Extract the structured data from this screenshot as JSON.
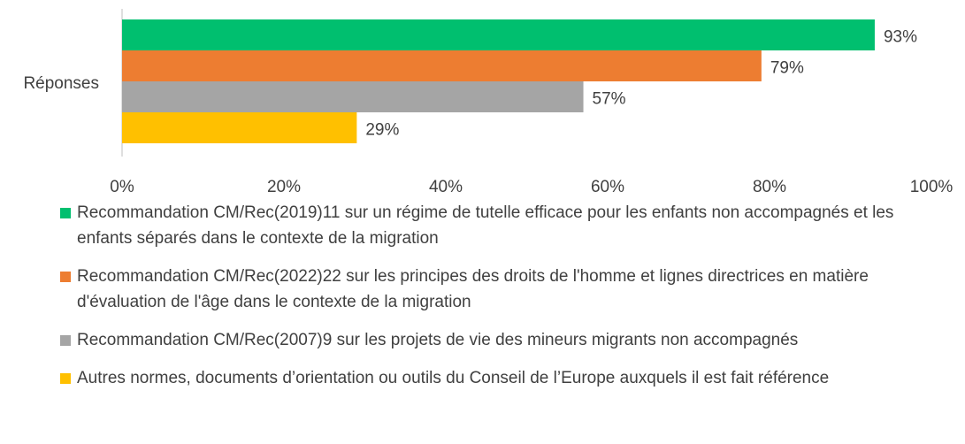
{
  "chart_data": {
    "type": "bar",
    "orientation": "horizontal",
    "categories": [
      "Réponses"
    ],
    "series": [
      {
        "name": "Recommandation CM/Rec(2019)11 sur un régime de tutelle efficace pour les enfants non accompagnés et les enfants séparés dans le contexte de la migration",
        "color": "#00bf6f",
        "values": [
          93
        ],
        "value_labels": [
          "93%"
        ]
      },
      {
        "name": "Recommandation CM/Rec(2022)22 sur les principes des droits de l'homme et lignes directrices en matière d'évaluation de l'âge dans le contexte de la migration",
        "color": "#ed7d31",
        "values": [
          79
        ],
        "value_labels": [
          "79%"
        ]
      },
      {
        "name": "Recommandation CM/Rec(2007)9 sur les projets de vie des mineurs migrants non accompagnés",
        "color": "#a5a5a5",
        "values": [
          57
        ],
        "value_labels": [
          "57%"
        ]
      },
      {
        "name": "Autres normes, documents d’orientation ou outils du Conseil de l’Europe auxquels il est fait référence",
        "color": "#ffc000",
        "values": [
          29
        ],
        "value_labels": [
          "29%"
        ]
      }
    ],
    "xlim": [
      0,
      100
    ],
    "xticks": [
      {
        "value": 0,
        "label": "0%"
      },
      {
        "value": 20,
        "label": "20%"
      },
      {
        "value": 40,
        "label": "40%"
      },
      {
        "value": 60,
        "label": "60%"
      },
      {
        "value": 80,
        "label": "80%"
      },
      {
        "value": 100,
        "label": "100%"
      }
    ],
    "grid": false,
    "legend": "bottom"
  }
}
